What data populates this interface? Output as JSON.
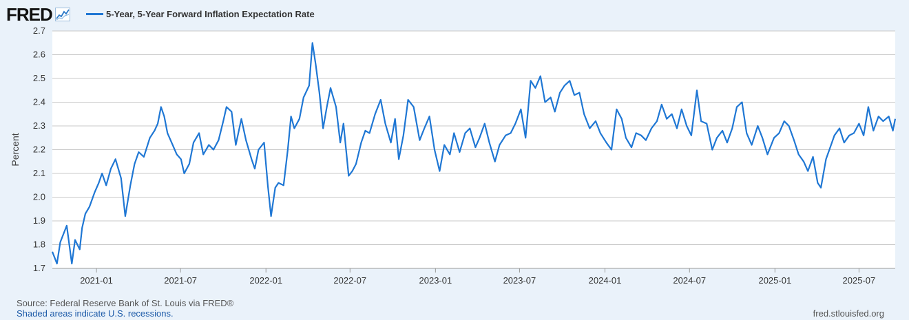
{
  "logo": {
    "text": "FRED"
  },
  "footer": {
    "source": "Source: Federal Reserve Bank of St. Louis via FRED®",
    "shaded": "Shaded areas indicate U.S. recessions.",
    "url": "fred.stlouisfed.org"
  },
  "colors": {
    "line": "#1f77d4",
    "background": "#eaf2fa",
    "plot_bg": "#ffffff",
    "grid": "#c8c8c8"
  },
  "chart_data": {
    "type": "line",
    "title": "",
    "xlabel": "",
    "ylabel": "Percent",
    "ylim": [
      1.7,
      2.7
    ],
    "yticks": [
      "1.7",
      "1.8",
      "1.9",
      "2.0",
      "2.1",
      "2.2",
      "2.3",
      "2.4",
      "2.5",
      "2.6",
      "2.7"
    ],
    "xlim": [
      "2020-09-28",
      "2025-09-17"
    ],
    "xticks": [
      "2021-01",
      "2021-07",
      "2022-01",
      "2022-07",
      "2023-01",
      "2023-07",
      "2024-01",
      "2024-07",
      "2025-01",
      "2025-07"
    ],
    "grid": true,
    "legend_position": "top-left",
    "series": [
      {
        "name": "5-Year, 5-Year Forward Inflation Expectation Rate",
        "x": [
          "2020-09-28",
          "2020-10-08",
          "2020-10-15",
          "2020-10-29",
          "2020-11-09",
          "2020-11-16",
          "2020-11-26",
          "2020-12-01",
          "2020-12-08",
          "2020-12-17",
          "2020-12-28",
          "2021-01-06",
          "2021-01-13",
          "2021-01-22",
          "2021-02-01",
          "2021-02-11",
          "2021-02-23",
          "2021-03-04",
          "2021-03-15",
          "2021-03-24",
          "2021-04-02",
          "2021-04-13",
          "2021-04-26",
          "2021-05-06",
          "2021-05-13",
          "2021-05-20",
          "2021-05-27",
          "2021-06-03",
          "2021-06-14",
          "2021-06-23",
          "2021-07-02",
          "2021-07-09",
          "2021-07-20",
          "2021-07-29",
          "2021-08-10",
          "2021-08-19",
          "2021-08-31",
          "2021-09-10",
          "2021-09-21",
          "2021-10-01",
          "2021-10-08",
          "2021-10-19",
          "2021-10-28",
          "2021-11-09",
          "2021-11-19",
          "2021-12-01",
          "2021-12-08",
          "2021-12-16",
          "2021-12-28",
          "2022-01-05",
          "2022-01-12",
          "2022-01-21",
          "2022-01-28",
          "2022-02-08",
          "2022-02-17",
          "2022-02-24",
          "2022-03-03",
          "2022-03-14",
          "2022-03-23",
          "2022-04-04",
          "2022-04-11",
          "2022-04-18",
          "2022-04-26",
          "2022-05-04",
          "2022-05-12",
          "2022-05-20",
          "2022-06-01",
          "2022-06-10",
          "2022-06-17",
          "2022-06-28",
          "2022-07-06",
          "2022-07-14",
          "2022-07-25",
          "2022-08-03",
          "2022-08-12",
          "2022-08-24",
          "2022-09-05",
          "2022-09-15",
          "2022-09-27",
          "2022-10-06",
          "2022-10-14",
          "2022-10-24",
          "2022-11-03",
          "2022-11-15",
          "2022-11-28",
          "2022-12-08",
          "2022-12-19",
          "2022-12-30",
          "2023-01-10",
          "2023-01-20",
          "2023-02-01",
          "2023-02-10",
          "2023-02-22",
          "2023-03-06",
          "2023-03-16",
          "2023-03-28",
          "2023-04-06",
          "2023-04-17",
          "2023-04-27",
          "2023-05-09",
          "2023-05-19",
          "2023-06-01",
          "2023-06-12",
          "2023-06-22",
          "2023-07-04",
          "2023-07-14",
          "2023-07-25",
          "2023-08-04",
          "2023-08-15",
          "2023-08-25",
          "2023-09-06",
          "2023-09-15",
          "2023-09-26",
          "2023-10-06",
          "2023-10-17",
          "2023-10-27",
          "2023-11-07",
          "2023-11-17",
          "2023-11-29",
          "2023-12-12",
          "2023-12-22",
          "2024-01-04",
          "2024-01-15",
          "2024-01-26",
          "2024-02-06",
          "2024-02-15",
          "2024-02-27",
          "2024-03-08",
          "2024-03-19",
          "2024-03-29",
          "2024-04-10",
          "2024-04-22",
          "2024-05-02",
          "2024-05-13",
          "2024-05-24",
          "2024-06-04",
          "2024-06-14",
          "2024-06-25",
          "2024-07-05",
          "2024-07-17",
          "2024-07-26",
          "2024-08-07",
          "2024-08-19",
          "2024-08-29",
          "2024-09-10",
          "2024-09-20",
          "2024-10-01",
          "2024-10-11",
          "2024-10-22",
          "2024-11-01",
          "2024-11-12",
          "2024-11-25",
          "2024-12-05",
          "2024-12-16",
          "2024-12-30",
          "2025-01-10",
          "2025-01-21",
          "2025-01-31",
          "2025-02-11",
          "2025-02-21",
          "2025-03-04",
          "2025-03-13",
          "2025-03-24",
          "2025-04-03",
          "2025-04-10",
          "2025-04-21",
          "2025-04-30",
          "2025-05-09",
          "2025-05-20",
          "2025-05-30",
          "2025-06-10",
          "2025-06-20",
          "2025-07-01",
          "2025-07-11",
          "2025-07-21",
          "2025-08-01",
          "2025-08-12",
          "2025-08-22",
          "2025-09-03",
          "2025-09-12",
          "2025-09-17"
        ],
        "values": [
          1.77,
          1.72,
          1.81,
          1.88,
          1.72,
          1.82,
          1.78,
          1.87,
          1.93,
          1.96,
          2.02,
          2.06,
          2.1,
          2.05,
          2.12,
          2.16,
          2.08,
          1.92,
          2.05,
          2.14,
          2.19,
          2.17,
          2.25,
          2.28,
          2.31,
          2.38,
          2.34,
          2.27,
          2.22,
          2.18,
          2.16,
          2.1,
          2.14,
          2.23,
          2.27,
          2.18,
          2.22,
          2.2,
          2.24,
          2.32,
          2.38,
          2.36,
          2.22,
          2.33,
          2.24,
          2.16,
          2.12,
          2.2,
          2.23,
          2.05,
          1.92,
          2.04,
          2.06,
          2.05,
          2.2,
          2.34,
          2.29,
          2.33,
          2.42,
          2.47,
          2.65,
          2.56,
          2.44,
          2.29,
          2.38,
          2.46,
          2.38,
          2.23,
          2.31,
          2.09,
          2.11,
          2.14,
          2.23,
          2.28,
          2.27,
          2.35,
          2.41,
          2.31,
          2.23,
          2.33,
          2.16,
          2.26,
          2.41,
          2.38,
          2.24,
          2.29,
          2.34,
          2.2,
          2.11,
          2.22,
          2.18,
          2.27,
          2.19,
          2.27,
          2.29,
          2.21,
          2.25,
          2.31,
          2.23,
          2.15,
          2.22,
          2.26,
          2.27,
          2.31,
          2.37,
          2.25,
          2.49,
          2.46,
          2.51,
          2.4,
          2.42,
          2.36,
          2.44,
          2.47,
          2.49,
          2.43,
          2.44,
          2.35,
          2.29,
          2.32,
          2.27,
          2.23,
          2.2,
          2.37,
          2.33,
          2.25,
          2.21,
          2.27,
          2.26,
          2.24,
          2.29,
          2.32,
          2.39,
          2.33,
          2.35,
          2.29,
          2.37,
          2.3,
          2.26,
          2.45,
          2.32,
          2.31,
          2.2,
          2.25,
          2.28,
          2.23,
          2.29,
          2.38,
          2.4,
          2.27,
          2.22,
          2.3,
          2.25,
          2.18,
          2.25,
          2.27,
          2.32,
          2.3,
          2.24,
          2.18,
          2.15,
          2.11,
          2.17,
          2.06,
          2.04,
          2.16,
          2.21,
          2.26,
          2.29,
          2.23,
          2.26,
          2.27,
          2.31,
          2.26,
          2.38,
          2.28,
          2.34,
          2.32,
          2.34,
          2.28,
          2.33
        ]
      }
    ]
  }
}
